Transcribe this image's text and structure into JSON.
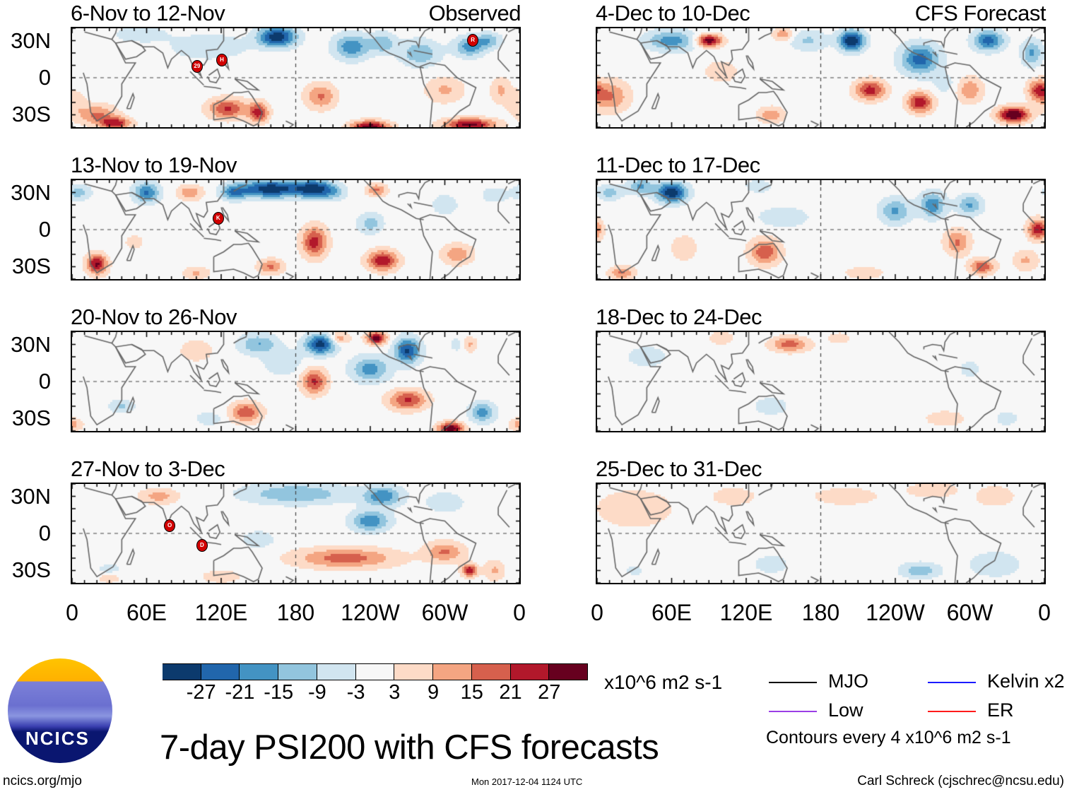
{
  "chart_data": {
    "type": "heatmap",
    "title": "7-day PSI200 with CFS forecasts",
    "units": "x10^6 m2 s-1",
    "contour_note": "Contours every 4 x10^6 m2 s-1",
    "lat_ticks": [
      "30N",
      "0",
      "30S"
    ],
    "lon_ticks": [
      "0",
      "60E",
      "120E",
      "180",
      "120W",
      "60W",
      "0"
    ],
    "colorbar": {
      "levels": [
        "-27",
        "-21",
        "-15",
        "-9",
        "-3",
        "3",
        "9",
        "15",
        "21",
        "27"
      ],
      "colors": [
        "#0c3a6d",
        "#2166ac",
        "#4393c3",
        "#92c5de",
        "#d1e5f0",
        "#f7f7f7",
        "#fddbc7",
        "#f4a582",
        "#d6604d",
        "#b2182b",
        "#67001f"
      ]
    },
    "panels": [
      {
        "title": "6-Nov to 12-Nov",
        "tag": "Observed",
        "storms": [
          {
            "label": "29",
            "lon": 100,
            "lat": 10
          },
          {
            "label": "H",
            "lon": 120,
            "lat": 15
          },
          {
            "label": "R",
            "lon": 322,
            "lat": 31
          }
        ],
        "features": [
          [
            165,
            33,
            -32,
            15,
            8
          ],
          [
            110,
            25,
            -8,
            30,
            10
          ],
          [
            55,
            35,
            -8,
            20,
            6
          ],
          [
            225,
            25,
            -20,
            14,
            10
          ],
          [
            250,
            28,
            -14,
            10,
            8
          ],
          [
            280,
            20,
            -15,
            15,
            10
          ],
          [
            320,
            25,
            -18,
            12,
            8
          ],
          [
            335,
            30,
            -14,
            10,
            6
          ],
          [
            20,
            -30,
            16,
            15,
            8
          ],
          [
            35,
            -37,
            24,
            12,
            5
          ],
          [
            125,
            -25,
            22,
            15,
            8
          ],
          [
            150,
            -28,
            24,
            8,
            8
          ],
          [
            200,
            -15,
            16,
            12,
            10
          ],
          [
            240,
            -40,
            32,
            15,
            5
          ],
          [
            320,
            -38,
            30,
            20,
            5
          ],
          [
            300,
            -10,
            10,
            15,
            10
          ],
          [
            345,
            -10,
            10,
            8,
            10
          ],
          [
            0,
            -20,
            8,
            10,
            10
          ]
        ]
      },
      {
        "title": "13-Nov to 19-Nov",
        "tag": "",
        "storms": [
          {
            "label": "K",
            "lon": 117,
            "lat": 10
          }
        ],
        "features": [
          [
            160,
            33,
            -32,
            25,
            7
          ],
          [
            195,
            33,
            -28,
            15,
            7
          ],
          [
            130,
            30,
            -18,
            10,
            6
          ],
          [
            60,
            30,
            -22,
            10,
            8
          ],
          [
            5,
            30,
            -12,
            10,
            6
          ],
          [
            240,
            5,
            -12,
            10,
            8
          ],
          [
            210,
            30,
            -10,
            10,
            6
          ],
          [
            300,
            20,
            -8,
            10,
            8
          ],
          [
            340,
            28,
            -8,
            10,
            6
          ],
          [
            95,
            30,
            14,
            10,
            6
          ],
          [
            245,
            32,
            16,
            8,
            5
          ],
          [
            195,
            -10,
            24,
            10,
            12
          ],
          [
            250,
            -25,
            26,
            12,
            8
          ],
          [
            160,
            -30,
            16,
            10,
            6
          ],
          [
            20,
            -28,
            28,
            8,
            8
          ],
          [
            310,
            -20,
            14,
            12,
            8
          ],
          [
            100,
            -35,
            10,
            10,
            5
          ],
          [
            50,
            -10,
            6,
            8,
            6
          ]
        ]
      },
      {
        "title": "20-Nov to 26-Nov",
        "tag": "",
        "storms": [],
        "features": [
          [
            200,
            30,
            -30,
            12,
            8
          ],
          [
            270,
            25,
            -28,
            10,
            10
          ],
          [
            150,
            30,
            -15,
            15,
            8
          ],
          [
            240,
            10,
            -18,
            15,
            10
          ],
          [
            170,
            15,
            -8,
            15,
            10
          ],
          [
            330,
            -25,
            -18,
            10,
            8
          ],
          [
            40,
            -20,
            -10,
            10,
            5
          ],
          [
            110,
            -30,
            -8,
            10,
            5
          ],
          [
            310,
            30,
            -6,
            6,
            6
          ],
          [
            245,
            35,
            30,
            8,
            5
          ],
          [
            215,
            35,
            14,
            8,
            5
          ],
          [
            195,
            0,
            22,
            10,
            10
          ],
          [
            270,
            -15,
            22,
            15,
            8
          ],
          [
            140,
            -25,
            20,
            12,
            8
          ],
          [
            305,
            -38,
            32,
            10,
            5
          ],
          [
            0,
            -35,
            12,
            8,
            5
          ],
          [
            320,
            30,
            10,
            6,
            6
          ],
          [
            100,
            25,
            6,
            15,
            10
          ]
        ]
      },
      {
        "title": "27-Nov to 3-Dec",
        "tag": "",
        "storms": [
          {
            "label": "O",
            "lon": 78,
            "lat": 7
          },
          {
            "label": "D",
            "lon": 104,
            "lat": -9
          }
        ],
        "features": [
          [
            180,
            32,
            -15,
            40,
            8
          ],
          [
            240,
            10,
            -20,
            15,
            8
          ],
          [
            250,
            30,
            -20,
            15,
            8
          ],
          [
            300,
            25,
            -8,
            15,
            8
          ],
          [
            30,
            -30,
            -8,
            10,
            5
          ],
          [
            150,
            -5,
            -6,
            15,
            8
          ],
          [
            220,
            -20,
            18,
            40,
            8
          ],
          [
            300,
            -15,
            16,
            15,
            8
          ],
          [
            320,
            -30,
            26,
            6,
            5
          ],
          [
            340,
            -30,
            10,
            8,
            8
          ],
          [
            70,
            30,
            12,
            15,
            6
          ],
          [
            30,
            -35,
            8,
            10,
            5
          ],
          [
            120,
            -35,
            8,
            15,
            5
          ]
        ]
      },
      {
        "title": "4-Dec to 10-Dec",
        "tag": "CFS Forecast",
        "storms": [],
        "features": [
          [
            205,
            30,
            -34,
            10,
            8
          ],
          [
            60,
            30,
            -18,
            20,
            8
          ],
          [
            260,
            15,
            -24,
            15,
            12
          ],
          [
            315,
            30,
            -24,
            12,
            8
          ],
          [
            350,
            20,
            -16,
            8,
            10
          ],
          [
            170,
            30,
            -10,
            15,
            8
          ],
          [
            280,
            -5,
            -6,
            10,
            8
          ],
          [
            90,
            30,
            32,
            10,
            5
          ],
          [
            150,
            35,
            14,
            8,
            5
          ],
          [
            220,
            -10,
            24,
            12,
            8
          ],
          [
            260,
            -20,
            26,
            10,
            8
          ],
          [
            335,
            -30,
            36,
            12,
            6
          ],
          [
            10,
            -15,
            16,
            15,
            12
          ],
          [
            140,
            -30,
            14,
            10,
            6
          ],
          [
            355,
            -10,
            20,
            8,
            8
          ],
          [
            300,
            -10,
            14,
            10,
            10
          ],
          [
            100,
            5,
            6,
            15,
            10
          ]
        ]
      },
      {
        "title": "11-Dec to 17-Dec",
        "tag": "",
        "storms": [],
        "features": [
          [
            60,
            30,
            -32,
            12,
            8
          ],
          [
            35,
            35,
            -16,
            10,
            6
          ],
          [
            240,
            15,
            -16,
            12,
            10
          ],
          [
            270,
            20,
            -20,
            10,
            10
          ],
          [
            300,
            20,
            -16,
            10,
            8
          ],
          [
            10,
            30,
            -12,
            10,
            6
          ],
          [
            150,
            10,
            -8,
            20,
            8
          ],
          [
            130,
            35,
            -8,
            10,
            5
          ],
          [
            135,
            -18,
            20,
            12,
            10
          ],
          [
            355,
            0,
            26,
            8,
            8
          ],
          [
            290,
            -10,
            16,
            10,
            10
          ],
          [
            310,
            -30,
            20,
            10,
            6
          ],
          [
            20,
            -35,
            16,
            10,
            5
          ],
          [
            70,
            -15,
            8,
            10,
            10
          ],
          [
            215,
            -35,
            8,
            15,
            5
          ],
          [
            345,
            -25,
            10,
            10,
            8
          ]
        ]
      },
      {
        "title": "18-Dec to 24-Dec",
        "tag": "",
        "storms": [],
        "features": [
          [
            155,
            30,
            18,
            15,
            6
          ],
          [
            100,
            35,
            8,
            10,
            5
          ],
          [
            195,
            35,
            6,
            10,
            5
          ],
          [
            40,
            20,
            -8,
            15,
            8
          ],
          [
            140,
            -20,
            -6,
            15,
            8
          ],
          [
            280,
            -30,
            8,
            15,
            6
          ],
          [
            330,
            -30,
            -6,
            10,
            6
          ],
          [
            300,
            10,
            -5,
            10,
            8
          ]
        ]
      },
      {
        "title": "25-Dec to 31-Dec",
        "tag": "",
        "storms": [],
        "features": [
          [
            30,
            20,
            8,
            30,
            15
          ],
          [
            110,
            30,
            6,
            20,
            8
          ],
          [
            200,
            30,
            6,
            30,
            8
          ],
          [
            270,
            35,
            8,
            20,
            6
          ],
          [
            320,
            30,
            8,
            15,
            8
          ],
          [
            260,
            -30,
            -14,
            15,
            6
          ],
          [
            320,
            -25,
            -8,
            20,
            10
          ],
          [
            140,
            -25,
            -6,
            15,
            8
          ],
          [
            30,
            -30,
            -5,
            8,
            5
          ]
        ]
      }
    ]
  },
  "legend": {
    "mjo": "MJO",
    "kelvin": "Kelvin x2",
    "low": "Low",
    "er": "ER",
    "mjo_color": "#000000",
    "kelvin_color": "#1a1aff",
    "low_color": "#9b3ee6",
    "er_color": "#ff1a1a"
  },
  "logo": {
    "text": "NCICS"
  },
  "footer": {
    "url": "ncics.org/mjo",
    "timestamp": "Mon 2017-12-04 1124 UTC",
    "author": "Carl Schreck (cjschrec@ncsu.edu)"
  }
}
